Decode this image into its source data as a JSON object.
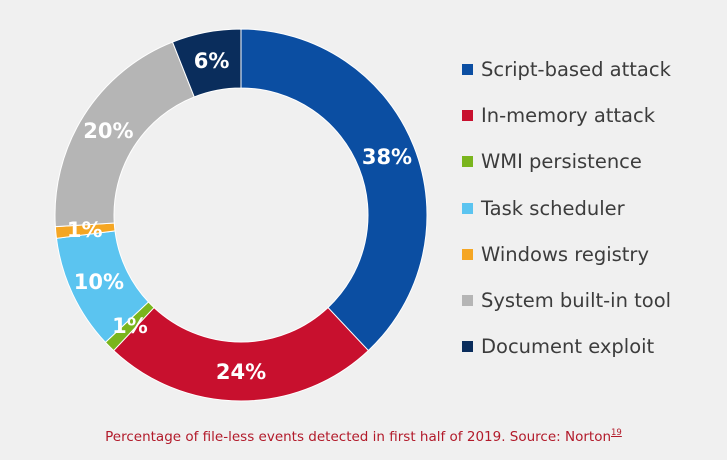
{
  "chart_data": {
    "type": "pie",
    "donut": true,
    "categories": [
      "Script-based attack",
      "In-memory attack",
      "WMI persistence",
      "Task scheduler",
      "Windows registry",
      "System built-in tool",
      "Document exploit"
    ],
    "values": [
      38,
      24,
      1,
      10,
      1,
      20,
      6
    ],
    "labels": [
      "38%",
      "24%",
      "1%",
      "10%",
      "1%",
      "20%",
      "6%"
    ],
    "colors": [
      "#0b4ea2",
      "#c8102e",
      "#7ab51d",
      "#5bc4f0",
      "#f5a623",
      "#b5b5b5",
      "#0a2d5c"
    ],
    "legend_position": "right"
  },
  "caption": {
    "text": "Percentage of file-less events detected in first half of 2019. Source: Norton",
    "footnote": "19"
  }
}
